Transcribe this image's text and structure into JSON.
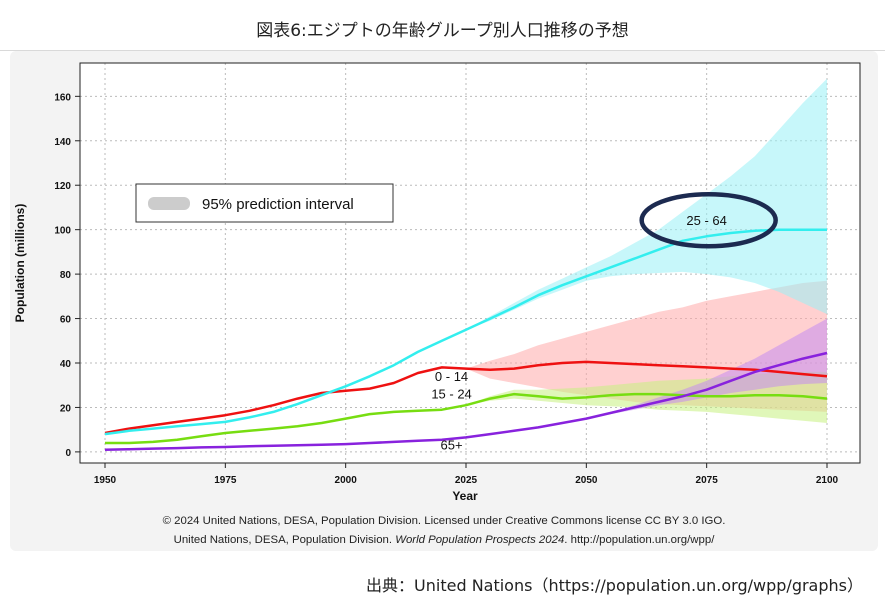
{
  "page": {
    "title": "図表6:エジプトの年齢グループ別人口推移の予想",
    "credit_line1": "© 2024 United Nations, DESA, Population Division. Licensed under Creative Commons license CC BY 3.0 IGO.",
    "credit_line2_a": "United Nations, DESA, Population Division.",
    "credit_line2_italic": "World Population Prospects 2024",
    "credit_line2_b": ". http://population.un.org/wpp/",
    "source": "出典：United Nations（https://population.un.org/wpp/graphs）"
  },
  "chart_data": {
    "type": "line",
    "xlabel": "Year",
    "ylabel": "Population (millions)",
    "xlim": [
      1950,
      2100
    ],
    "ylim": [
      -5,
      175
    ],
    "x_ticks": [
      1950,
      1975,
      2000,
      2025,
      2050,
      2075,
      2100
    ],
    "y_ticks": [
      0,
      20,
      40,
      60,
      80,
      100,
      120,
      140,
      160
    ],
    "grid": true,
    "legend": {
      "label": "95% prediction interval",
      "position": "upper-left",
      "color": "#cccccc"
    },
    "series": [
      {
        "name": "0 - 14",
        "color": "#ee1111",
        "band_color": "#ffaaaa",
        "x": [
          1950,
          1955,
          1960,
          1965,
          1970,
          1975,
          1980,
          1985,
          1990,
          1995,
          2000,
          2005,
          2010,
          2015,
          2020,
          2025,
          2030,
          2035,
          2040,
          2045,
          2050,
          2055,
          2060,
          2065,
          2070,
          2075,
          2080,
          2085,
          2090,
          2095,
          2100
        ],
        "values": [
          8.5,
          10.5,
          12,
          13.5,
          15,
          16.5,
          18.5,
          21,
          24,
          26.5,
          27.5,
          28.5,
          31,
          35.5,
          38,
          37.5,
          37,
          37.5,
          39,
          40,
          40.5,
          40,
          39.5,
          39,
          38.5,
          38,
          37.5,
          37,
          36,
          35,
          34
        ],
        "band_lower": [
          null,
          null,
          null,
          null,
          null,
          null,
          null,
          null,
          null,
          null,
          null,
          null,
          null,
          null,
          null,
          37.5,
          33,
          31,
          29,
          27,
          25.5,
          24,
          22.5,
          21.5,
          21,
          20.5,
          20,
          19.5,
          19,
          18.5,
          18
        ],
        "band_upper": [
          null,
          null,
          null,
          null,
          null,
          null,
          null,
          null,
          null,
          null,
          null,
          null,
          null,
          null,
          null,
          37.5,
          41,
          44,
          48,
          51,
          54,
          57,
          60,
          63,
          65,
          68,
          70,
          72,
          74,
          76,
          77
        ]
      },
      {
        "name": "15 - 24",
        "color": "#77dd11",
        "band_color": "#c7f080",
        "x": [
          1950,
          1955,
          1960,
          1965,
          1970,
          1975,
          1980,
          1985,
          1990,
          1995,
          2000,
          2005,
          2010,
          2015,
          2020,
          2025,
          2030,
          2035,
          2040,
          2045,
          2050,
          2055,
          2060,
          2065,
          2070,
          2075,
          2080,
          2085,
          2090,
          2095,
          2100
        ],
        "values": [
          4,
          4,
          4.5,
          5.5,
          7,
          8.5,
          9.5,
          10.5,
          11.5,
          13,
          15,
          17,
          18,
          18.5,
          19,
          21,
          24,
          26,
          25,
          24,
          24.5,
          25.5,
          26,
          26,
          25.5,
          25,
          25,
          25.5,
          25.5,
          25,
          24
        ],
        "band_lower": [
          null,
          null,
          null,
          null,
          null,
          null,
          null,
          null,
          null,
          null,
          null,
          null,
          null,
          null,
          null,
          21,
          23,
          24,
          23,
          22,
          21,
          20.5,
          20,
          19,
          18.5,
          18,
          17,
          16,
          15,
          14,
          13
        ],
        "band_upper": [
          null,
          null,
          null,
          null,
          null,
          null,
          null,
          null,
          null,
          null,
          null,
          null,
          null,
          null,
          null,
          21,
          25,
          28,
          28,
          28.5,
          29,
          30,
          31,
          32,
          32.5,
          33,
          34,
          35,
          35.5,
          36,
          36
        ]
      },
      {
        "name": "25 - 64",
        "color": "#33eeee",
        "band_color": "#99f0f5",
        "x": [
          1950,
          1955,
          1960,
          1965,
          1970,
          1975,
          1980,
          1985,
          1990,
          1995,
          2000,
          2005,
          2010,
          2015,
          2020,
          2025,
          2030,
          2035,
          2040,
          2045,
          2050,
          2055,
          2060,
          2065,
          2070,
          2075,
          2080,
          2085,
          2090,
          2095,
          2100
        ],
        "values": [
          8,
          9.5,
          10.5,
          11.5,
          12.5,
          13.5,
          15.5,
          18,
          21.5,
          25.5,
          29.5,
          34,
          39,
          45,
          50,
          55,
          60,
          65,
          70.5,
          75,
          79,
          83,
          87,
          91,
          95,
          97,
          98.5,
          99.5,
          100,
          100,
          100
        ],
        "band_lower": [
          null,
          null,
          null,
          null,
          null,
          null,
          null,
          null,
          null,
          null,
          null,
          null,
          null,
          null,
          null,
          55,
          59,
          64,
          69,
          73,
          77,
          79,
          80,
          80.5,
          81,
          80,
          78.5,
          76,
          72,
          67,
          62
        ],
        "band_upper": [
          null,
          null,
          null,
          null,
          null,
          null,
          null,
          null,
          null,
          null,
          null,
          null,
          null,
          null,
          null,
          55,
          61,
          67,
          73,
          78,
          83,
          88,
          94,
          100,
          108,
          116,
          124,
          133,
          145,
          157,
          168
        ]
      },
      {
        "name": "65+",
        "color": "#8822dd",
        "band_color": "#c48df0",
        "x": [
          1950,
          1955,
          1960,
          1965,
          1970,
          1975,
          1980,
          1985,
          1990,
          1995,
          2000,
          2005,
          2010,
          2015,
          2020,
          2025,
          2030,
          2035,
          2040,
          2045,
          2050,
          2055,
          2060,
          2065,
          2070,
          2075,
          2080,
          2085,
          2090,
          2095,
          2100
        ],
        "values": [
          1,
          1.2,
          1.5,
          1.7,
          2,
          2.2,
          2.5,
          2.8,
          3,
          3.2,
          3.5,
          4,
          4.5,
          5,
          5.5,
          6.5,
          8,
          9.5,
          11,
          13,
          15,
          17.5,
          20,
          22.5,
          25,
          28,
          32,
          36,
          39,
          42,
          44.5
        ],
        "band_lower": [
          null,
          null,
          null,
          null,
          null,
          null,
          null,
          null,
          null,
          null,
          null,
          null,
          null,
          null,
          null,
          6.5,
          8,
          9.5,
          11,
          13,
          15,
          17,
          19,
          21,
          22.5,
          24.5,
          26.5,
          28,
          29.5,
          30.5,
          31
        ],
        "band_upper": [
          null,
          null,
          null,
          null,
          null,
          null,
          null,
          null,
          null,
          null,
          null,
          null,
          null,
          null,
          null,
          6.5,
          8,
          9.5,
          11,
          13,
          15,
          18,
          21,
          24.5,
          28,
          32,
          37,
          42,
          48,
          54,
          60
        ]
      }
    ],
    "annotations": [
      {
        "text": "0 - 14",
        "x": 2022,
        "y": 32
      },
      {
        "text": "15 - 24",
        "x": 2022,
        "y": 24
      },
      {
        "text": "65+",
        "x": 2022,
        "y": 1
      },
      {
        "text": "25 - 64",
        "x": 2075,
        "y": 102,
        "circled": true,
        "ring_color": "#1c2a50"
      }
    ]
  }
}
